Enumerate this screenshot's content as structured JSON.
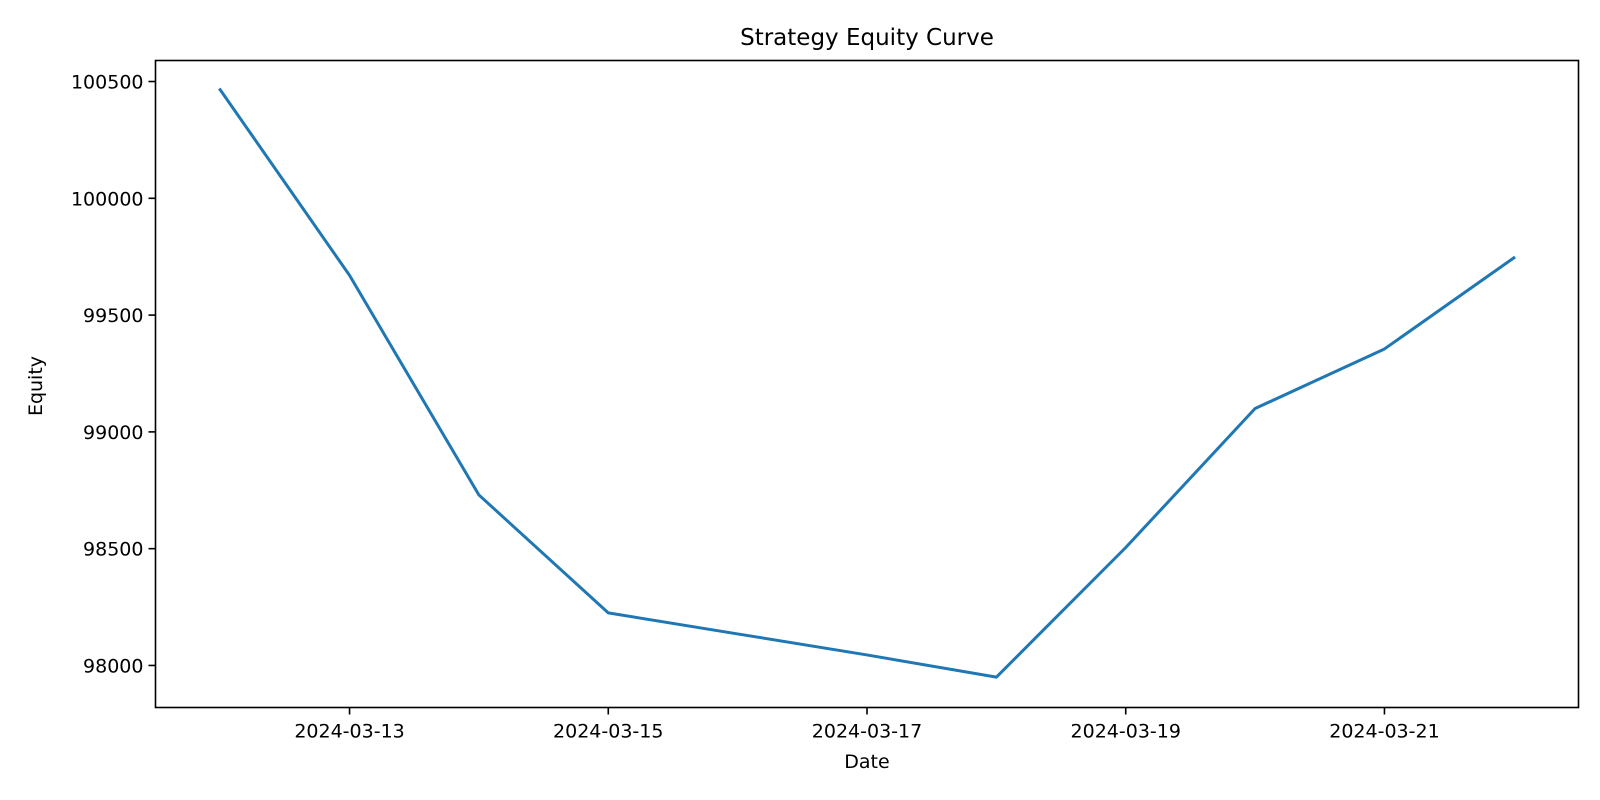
{
  "chart_data": {
    "type": "line",
    "title": "Strategy Equity Curve",
    "xlabel": "Date",
    "ylabel": "Equity",
    "x": [
      "2024-03-12",
      "2024-03-13",
      "2024-03-14",
      "2024-03-15",
      "2024-03-16",
      "2024-03-17",
      "2024-03-18",
      "2024-03-19",
      "2024-03-20",
      "2024-03-21",
      "2024-03-22"
    ],
    "series": [
      {
        "values": [
          100465,
          99670,
          98730,
          98225,
          98135,
          98045,
          97950,
          98505,
          99100,
          99355,
          99745
        ],
        "color": "#1f77b4"
      }
    ],
    "xticks": [
      "2024-03-13",
      "2024-03-15",
      "2024-03-17",
      "2024-03-19",
      "2024-03-21"
    ],
    "yticks": [
      98000,
      98500,
      99000,
      99500,
      100000,
      100500
    ],
    "xlim": [
      "2024-03-11T12:00",
      "2024-03-22T12:00"
    ],
    "ylim": [
      97820,
      100590
    ],
    "grid": false,
    "legend": "none"
  }
}
